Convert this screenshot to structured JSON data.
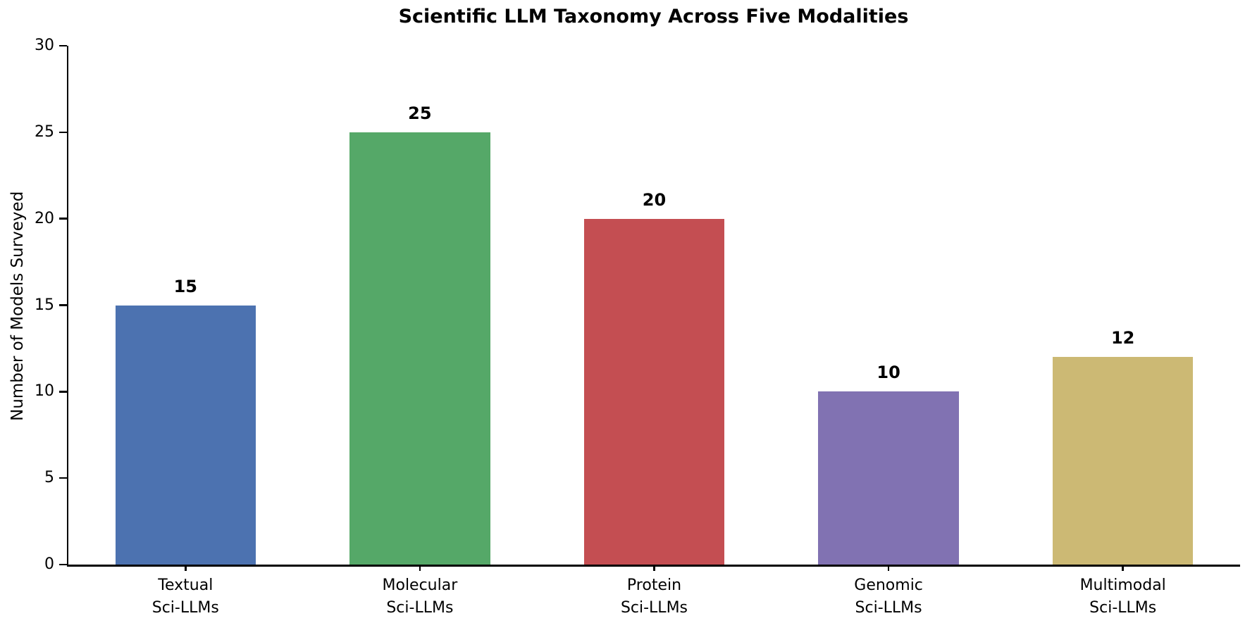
{
  "chart_data": {
    "type": "bar",
    "title": "Scientific LLM Taxonomy Across Five Modalities",
    "xlabel": "",
    "ylabel": "Number of Models Surveyed",
    "categories": [
      [
        "Textual",
        "Sci-LLMs"
      ],
      [
        "Molecular",
        "Sci-LLMs"
      ],
      [
        "Protein",
        "Sci-LLMs"
      ],
      [
        "Genomic",
        "Sci-LLMs"
      ],
      [
        "Multimodal",
        "Sci-LLMs"
      ]
    ],
    "values": [
      15,
      25,
      20,
      10,
      12
    ],
    "value_labels": [
      "15",
      "25",
      "20",
      "10",
      "12"
    ],
    "bar_colors": [
      "#4C72B0",
      "#55A868",
      "#C44E52",
      "#8172B2",
      "#CCB974"
    ],
    "ylim": [
      0,
      30
    ],
    "yticks": [
      0,
      5,
      10,
      15,
      20,
      25,
      30
    ],
    "grid": false,
    "legend_position": "none",
    "bar_width_fraction": 0.6,
    "background_color": "#ffffff",
    "axis_color": "#000000"
  }
}
